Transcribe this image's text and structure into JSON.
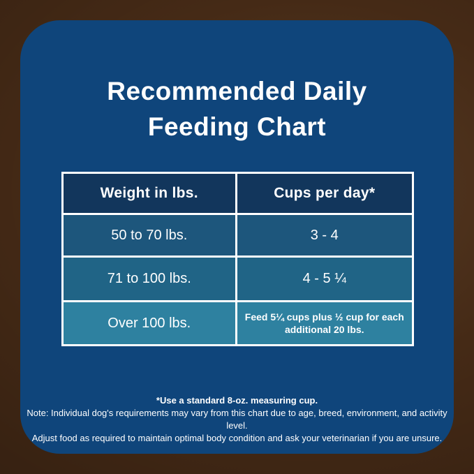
{
  "title": {
    "line1": "Recommended Daily",
    "line2": "Feeding Chart"
  },
  "table": {
    "headers": {
      "weight": "Weight in lbs.",
      "cups": "Cups per day*"
    },
    "rows": [
      {
        "weight": "50 to 70 lbs.",
        "cups": "3 - 4",
        "bg": "#1d567c"
      },
      {
        "weight": "71 to 100 lbs.",
        "cups": "4 - 5 ¼",
        "bg": "#206486"
      },
      {
        "weight": "Over 100 lbs.",
        "cups": "Feed 5¼ cups plus ½ cup for each additional 20 lbs.",
        "bg": "#2e81a0"
      }
    ],
    "header_bg": "#12365c"
  },
  "footnotes": {
    "measuring_cup": "*Use a standard 8-oz. measuring cup.",
    "note_line1": "Note: Individual dog's requirements may vary from this chart due to age, breed, environment, and activity level.",
    "note_line2": "Adjust food as required to maintain optimal body condition and ask your veterinarian if you are unsure."
  },
  "colors": {
    "panel_bg": "#0f457b",
    "header_bg": "#12365c",
    "row1_bg": "#1d567c",
    "row2_bg": "#206486",
    "row3_bg": "#2e81a0",
    "text": "#ffffff",
    "border": "#ffffff",
    "wood_dark": "#33200f",
    "wood_light": "#5d3b22"
  },
  "chart_data": {
    "type": "table",
    "title": "Recommended Daily Feeding Chart",
    "columns": [
      "Weight in lbs.",
      "Cups per day*"
    ],
    "rows": [
      [
        "50 to 70 lbs.",
        "3 - 4"
      ],
      [
        "71 to 100 lbs.",
        "4 - 5 ¼"
      ],
      [
        "Over 100 lbs.",
        "Feed 5¼ cups plus ½ cup for each additional 20 lbs."
      ]
    ],
    "footnotes": [
      "*Use a standard 8-oz. measuring cup.",
      "Note: Individual dog's requirements may vary from this chart due to age, breed, environment, and activity level.",
      "Adjust food as required to maintain optimal body condition and ask your veterinarian if you are unsure."
    ]
  }
}
